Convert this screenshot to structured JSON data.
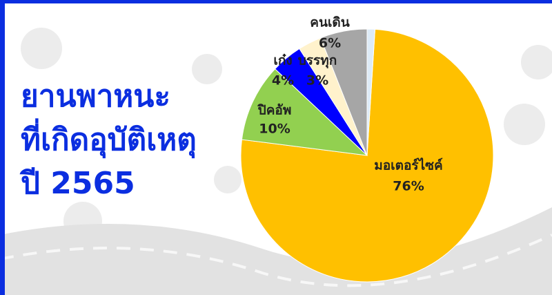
{
  "chart_data": {
    "type": "pie",
    "title": [
      "ยานพาหนะ",
      "ที่เกิดอุบัติเหตุ",
      "ปี 2565"
    ],
    "categories": [
      "มอเตอร์ไซค์",
      "ปิคอัพ",
      "เก๋ง",
      "บรรทุก",
      "คนเดิน",
      null
    ],
    "values": [
      76,
      10,
      4,
      3,
      6,
      1
    ],
    "value_labels": [
      "76%",
      "10%",
      "4%",
      "3%",
      "6%",
      null
    ],
    "colors": [
      "#FFC000",
      "#92D050",
      "#0000FF",
      "#FFF2CC",
      "#A6A6A6",
      "#DDEBF7"
    ]
  }
}
